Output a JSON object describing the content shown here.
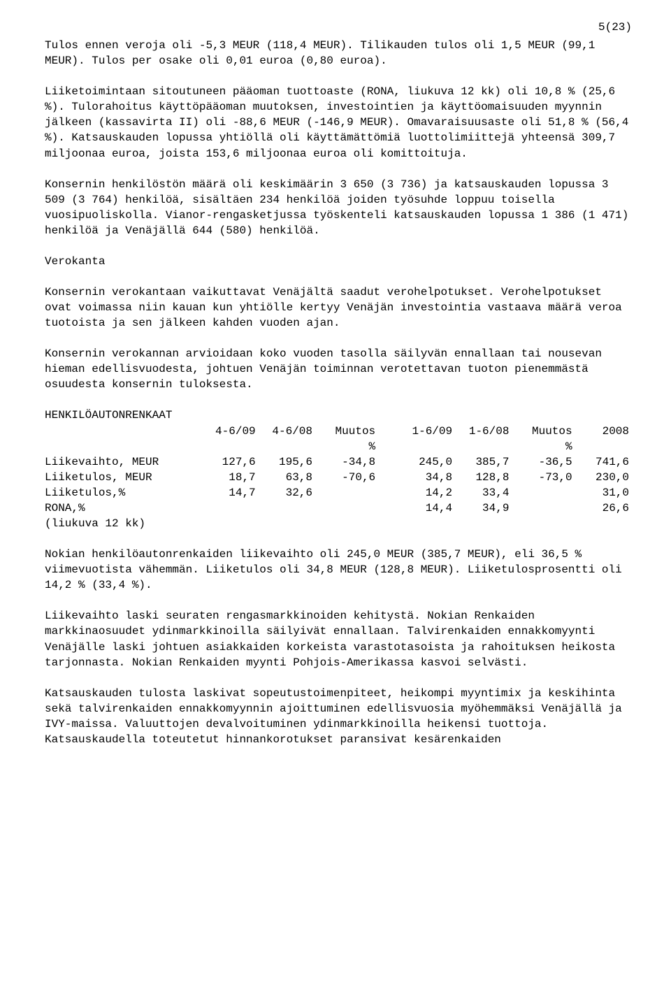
{
  "page_number": "5(23)",
  "p1": "Tulos ennen veroja oli -5,3 MEUR (118,4 MEUR). Tilikauden tulos oli 1,5 MEUR (99,1 MEUR). Tulos per osake oli 0,01 euroa (0,80 euroa).",
  "p2": "Liiketoimintaan sitoutuneen pääoman tuottoaste (RONA, liukuva 12 kk) oli 10,8 % (25,6 %). Tulorahoitus käyttöpääoman muutoksen, investointien ja käyttöomaisuuden myynnin jälkeen (kassavirta II) oli -88,6 MEUR (-146,9 MEUR). Omavaraisuusaste oli 51,8 % (56,4 %). Katsauskauden lopussa yhtiöllä oli käyttämättömiä luottolimiittejä yhteensä 309,7 miljoonaa euroa, joista 153,6 miljoonaa euroa oli komittoituja.",
  "p3": "Konsernin henkilöstön määrä oli keskimäärin 3 650 (3 736) ja katsauskauden lopussa 3 509 (3 764) henkilöä, sisältäen 234 henkilöä joiden työsuhde loppuu toisella vuosipuoliskolla. Vianor-rengasketjussa työskenteli katsauskauden lopussa 1 386 (1 471) henkilöä ja Venäjällä 644 (580) henkilöä.",
  "h_verokanta": "Verokanta",
  "p4": "Konsernin verokantaan vaikuttavat Venäjältä saadut verohelpotukset. Verohelpotukset ovat voimassa niin kauan kun yhtiölle kertyy Venäjän investointia vastaava määrä veroa tuotoista ja sen jälkeen kahden vuoden ajan.",
  "p5": "Konsernin verokannan arvioidaan koko vuoden tasolla säilyvän ennallaan tai nousevan hieman edellisvuodesta, johtuen Venäjän toiminnan verotettavan tuoton pienemmästä osuudesta konsernin tuloksesta.",
  "h_table": "HENKILÖAUTONRENKAAT",
  "table": {
    "headers": {
      "c1": "",
      "c2": "4-6/09",
      "c3": "4-6/08",
      "c4": "Muutos",
      "c4b": "%",
      "c5": "1-6/09",
      "c6": "1-6/08",
      "c7": "Muutos",
      "c7b": "%",
      "c8": "2008"
    },
    "rows": [
      {
        "label": "Liikevaihto, MEUR",
        "a": "127,6",
        "b": "195,6",
        "c": "-34,8",
        "d": "245,0",
        "e": "385,7",
        "f": "-36,5",
        "g": "741,6"
      },
      {
        "label": "Liiketulos, MEUR",
        "a": "18,7",
        "b": "63,8",
        "c": "-70,6",
        "d": "34,8",
        "e": "128,8",
        "f": "-73,0",
        "g": "230,0"
      },
      {
        "label": "Liiketulos,%",
        "a": "14,7",
        "b": "32,6",
        "c": "",
        "d": "14,2",
        "e": "33,4",
        "f": "",
        "g": "31,0"
      },
      {
        "label": "RONA,%",
        "a": "",
        "b": "",
        "c": "",
        "d": "14,4",
        "e": "34,9",
        "f": "",
        "g": "26,6"
      }
    ],
    "footer": "(liukuva 12 kk)"
  },
  "p6": "Nokian henkilöautonrenkaiden liikevaihto oli 245,0 MEUR (385,7 MEUR), eli 36,5 % viimevuotista vähemmän. Liiketulos oli 34,8 MEUR (128,8 MEUR). Liiketulosprosentti oli 14,2 % (33,4 %).",
  "p7": "Liikevaihto laski seuraten rengasmarkkinoiden kehitystä. Nokian Renkaiden markkinaosuudet ydinmarkkinoilla säilyivät ennallaan. Talvirenkaiden ennakkomyynti Venäjälle laski johtuen asiakkaiden korkeista varastotasoista ja rahoituksen heikosta tarjonnasta. Nokian Renkaiden myynti Pohjois-Amerikassa kasvoi selvästi.",
  "p8": "Katsauskauden tulosta laskivat sopeutustoimenpiteet, heikompi myyntimix ja keskihinta sekä talvirenkaiden ennakkomyynnin ajoittuminen edellisvuosia myöhemmäksi Venäjällä ja IVY-maissa. Valuuttojen devalvoituminen ydinmarkkinoilla heikensi tuottoja. Katsauskaudella toteutetut hinnankorotukset paransivat kesärenkaiden"
}
